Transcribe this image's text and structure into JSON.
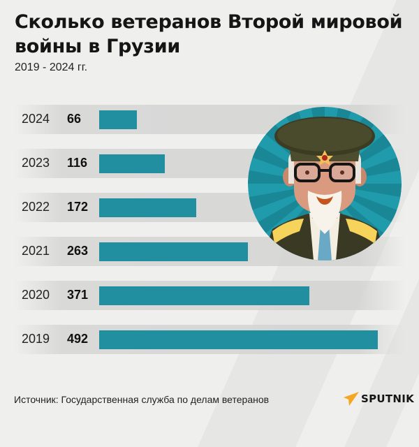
{
  "header": {
    "title": "Сколько ветеранов Второй мировой войны в Грузии",
    "subtitle": "2019 - 2024 гг."
  },
  "rows": [
    {
      "year": "2024",
      "value": "66"
    },
    {
      "year": "2023",
      "value": "116"
    },
    {
      "year": "2022",
      "value": "172"
    },
    {
      "year": "2021",
      "value": "263"
    },
    {
      "year": "2020",
      "value": "371"
    },
    {
      "year": "2019",
      "value": "492"
    }
  ],
  "footer": {
    "source": "Источник: Государственная служба по делам ветеранов",
    "logo": "SPUTNIK"
  },
  "colors": {
    "bar": "#218f9f",
    "background": "#efefee",
    "logo_accent": "#f5a623",
    "avatar_bg": "#1f9bab"
  },
  "illustration": "veteran-soldier-illustration",
  "chart_data": {
    "type": "bar",
    "orientation": "horizontal",
    "title": "Сколько ветеранов Второй мировой войны в Грузии",
    "subtitle": "2019 - 2024 гг.",
    "categories": [
      "2024",
      "2023",
      "2022",
      "2021",
      "2020",
      "2019"
    ],
    "values": [
      66,
      116,
      172,
      263,
      371,
      492
    ],
    "xlabel": "",
    "ylabel": "",
    "data_labels": true,
    "grid": false,
    "legend": null,
    "source": "Источник: Государственная служба по делам ветеранов"
  }
}
